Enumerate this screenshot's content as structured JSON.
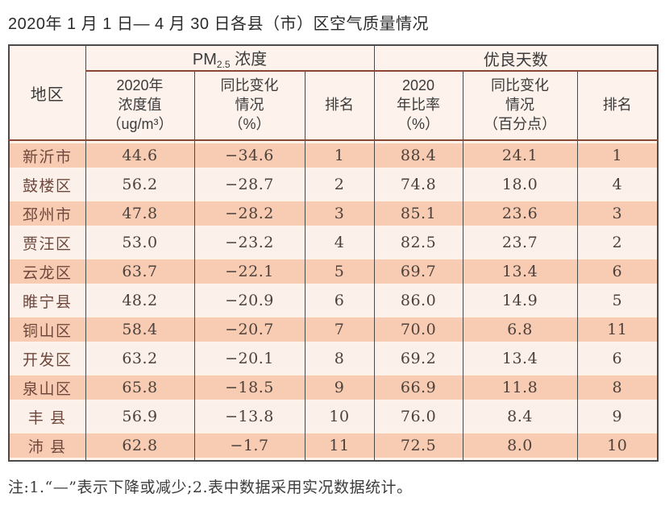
{
  "page": {
    "title": "2020年 1 月 1 日— 4 月 30 日各县（市）区空气质量情况",
    "note": "注:1.“—”表示下降或减少;2.表中数据采用实况数据统计。"
  },
  "table": {
    "region_header": "地区",
    "group_pm25": {
      "prefix": "PM",
      "sub": "2.5",
      "suffix": " 浓度"
    },
    "group_days": "优良天数",
    "sub_headers": {
      "pm_value": "2020年\n浓度值\n（ug/m³）",
      "pm_change": "同比变化\n情况\n（%）",
      "pm_rank": "排名",
      "days_ratio": "2020\n年比率\n（%）",
      "days_change": "同比变化\n情况\n（百分点）",
      "days_rank": "排名"
    },
    "column_keys": [
      "region",
      "pm_value",
      "pm_change",
      "pm_rank",
      "days_ratio",
      "days_change",
      "days_rank"
    ],
    "rows": [
      {
        "region": "新沂市",
        "pm_value": "44.6",
        "pm_change": "−34.6",
        "pm_rank": "1",
        "days_ratio": "88.4",
        "days_change": "24.1",
        "days_rank": "1"
      },
      {
        "region": "鼓楼区",
        "pm_value": "56.2",
        "pm_change": "−28.7",
        "pm_rank": "2",
        "days_ratio": "74.8",
        "days_change": "18.0",
        "days_rank": "4"
      },
      {
        "region": "邳州市",
        "pm_value": "47.8",
        "pm_change": "−28.2",
        "pm_rank": "3",
        "days_ratio": "85.1",
        "days_change": "23.6",
        "days_rank": "3"
      },
      {
        "region": "贾汪区",
        "pm_value": "53.0",
        "pm_change": "−23.2",
        "pm_rank": "4",
        "days_ratio": "82.5",
        "days_change": "23.7",
        "days_rank": "2"
      },
      {
        "region": "云龙区",
        "pm_value": "63.7",
        "pm_change": "−22.1",
        "pm_rank": "5",
        "days_ratio": "69.7",
        "days_change": "13.4",
        "days_rank": "6"
      },
      {
        "region": "睢宁县",
        "pm_value": "48.2",
        "pm_change": "−20.9",
        "pm_rank": "6",
        "days_ratio": "86.0",
        "days_change": "14.9",
        "days_rank": "5"
      },
      {
        "region": "铜山区",
        "pm_value": "58.4",
        "pm_change": "−20.7",
        "pm_rank": "7",
        "days_ratio": "70.0",
        "days_change": "6.8",
        "days_rank": "11"
      },
      {
        "region": "开发区",
        "pm_value": "63.2",
        "pm_change": "−20.1",
        "pm_rank": "8",
        "days_ratio": "69.2",
        "days_change": "13.4",
        "days_rank": "6"
      },
      {
        "region": "泉山区",
        "pm_value": "65.8",
        "pm_change": "−18.5",
        "pm_rank": "9",
        "days_ratio": "66.9",
        "days_change": "11.8",
        "days_rank": "8"
      },
      {
        "region": "丰 县",
        "pm_value": "56.9",
        "pm_change": "−13.8",
        "pm_rank": "10",
        "days_ratio": "76.0",
        "days_change": "8.4",
        "days_rank": "9"
      },
      {
        "region": "沛 县",
        "pm_value": "62.8",
        "pm_change": "−1.7",
        "pm_rank": "11",
        "days_ratio": "72.5",
        "days_change": "8.0",
        "days_rank": "10"
      }
    ]
  },
  "colors": {
    "stripe_salmon": "#f8cbb3",
    "stripe_pale": "#fcf1ea",
    "header_bg": "#fdf3ec",
    "header_rule_maroon": "#8a4734",
    "grid_dark": "#4a4a4a",
    "region_text": "#6e483c",
    "number_text": "#4c423d"
  }
}
